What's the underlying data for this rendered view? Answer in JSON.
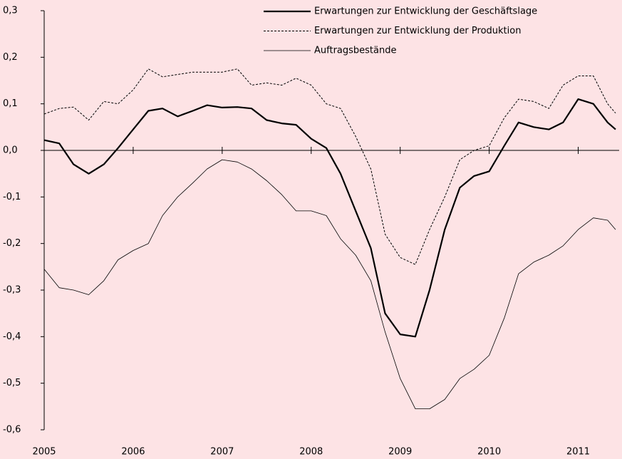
{
  "chart_data": {
    "type": "line",
    "x": [
      2005,
      2005.17,
      2005.33,
      2005.5,
      2005.67,
      2005.83,
      2006,
      2006.17,
      2006.33,
      2006.5,
      2006.67,
      2006.83,
      2007,
      2007.17,
      2007.33,
      2007.5,
      2007.67,
      2007.83,
      2008,
      2008.17,
      2008.33,
      2008.5,
      2008.67,
      2008.83,
      2009,
      2009.17,
      2009.33,
      2009.5,
      2009.67,
      2009.83,
      2010,
      2010.17,
      2010.33,
      2010.5,
      2010.67,
      2010.83,
      2011,
      2011.17,
      2011.33,
      2011.42
    ],
    "series": [
      {
        "name": "Erwartungen zur Entwicklung der Geschäftslage",
        "color": "#000000",
        "style": "bold",
        "values": [
          0.022,
          0.015,
          -0.03,
          -0.05,
          -0.03,
          0.005,
          0.045,
          0.085,
          0.09,
          0.073,
          0.085,
          0.097,
          0.092,
          0.093,
          0.09,
          0.065,
          0.058,
          0.055,
          0.025,
          0.005,
          -0.05,
          -0.13,
          -0.21,
          -0.35,
          -0.395,
          -0.4,
          -0.3,
          -0.17,
          -0.08,
          -0.055,
          -0.045,
          0.01,
          0.06,
          0.05,
          0.045,
          0.06,
          0.11,
          0.1,
          0.06,
          0.045
        ]
      },
      {
        "name": "Erwartungen zur Entwicklung der Produktion",
        "color": "#000000",
        "style": "dashed",
        "values": [
          0.078,
          0.09,
          0.093,
          0.065,
          0.105,
          0.1,
          0.13,
          0.175,
          0.158,
          0.163,
          0.168,
          0.168,
          0.168,
          0.175,
          0.14,
          0.145,
          0.14,
          0.155,
          0.14,
          0.1,
          0.09,
          0.03,
          -0.04,
          -0.18,
          -0.23,
          -0.245,
          -0.17,
          -0.1,
          -0.02,
          0.0,
          0.01,
          0.07,
          0.11,
          0.105,
          0.09,
          0.14,
          0.16,
          0.16,
          0.1,
          0.08
        ]
      },
      {
        "name": "Auftragsbestände",
        "color": "#000000",
        "style": "thin",
        "values": [
          -0.255,
          -0.295,
          -0.3,
          -0.31,
          -0.28,
          -0.235,
          -0.215,
          -0.2,
          -0.14,
          -0.1,
          -0.07,
          -0.04,
          -0.02,
          -0.025,
          -0.04,
          -0.065,
          -0.095,
          -0.13,
          -0.13,
          -0.14,
          -0.19,
          -0.225,
          -0.28,
          -0.39,
          -0.49,
          -0.555,
          -0.555,
          -0.535,
          -0.49,
          -0.47,
          -0.44,
          -0.36,
          -0.265,
          -0.24,
          -0.225,
          -0.205,
          -0.17,
          -0.145,
          -0.15,
          -0.17
        ]
      }
    ],
    "xlim": [
      2005,
      2011.46
    ],
    "xticks": [
      2005,
      2006,
      2007,
      2008,
      2009,
      2010,
      2011
    ],
    "ylim": [
      -0.6,
      0.3
    ],
    "yticks": [
      {
        "value": 0.3,
        "label": "0,3"
      },
      {
        "value": 0.2,
        "label": "0,2"
      },
      {
        "value": 0.1,
        "label": "0,1"
      },
      {
        "value": 0,
        "label": "0,0"
      },
      {
        "value": -0.1,
        "label": "-0,1"
      },
      {
        "value": -0.2,
        "label": "-0,2"
      },
      {
        "value": -0.3,
        "label": "-0,3"
      },
      {
        "value": -0.4,
        "label": "-0,4"
      },
      {
        "value": -0.5,
        "label": "-0,5"
      },
      {
        "value": -0.6,
        "label": "-0,6"
      }
    ],
    "legend": "top-right"
  }
}
